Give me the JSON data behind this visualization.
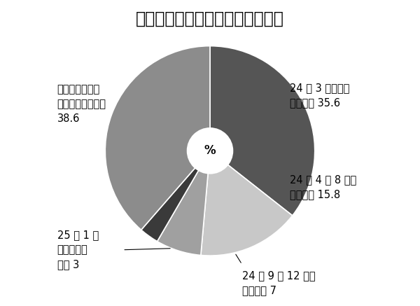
{
  "title": "４割の事業者が対応のメド立たず",
  "slices": [
    {
      "label": "24 年 3 月までに\n対応完了 35.6",
      "value": 35.6,
      "color": "#555555"
    },
    {
      "label": "24 年 4 〜 8 月に\n対応完了 15.8",
      "value": 15.8,
      "color": "#c8c8c8"
    },
    {
      "label": "24 年 9 〜 12 月に\n完了予定 7",
      "value": 7.0,
      "color": "#a0a0a0"
    },
    {
      "label": "25 年 1 月\n以降に完了\n予定 3",
      "value": 3.0,
      "color": "#3a3a3a"
    },
    {
      "label": "現在対応中だが\n完了のメド立たず\n38.6",
      "value": 38.6,
      "color": "#8c8c8c"
    }
  ],
  "center_label": "%",
  "background_color": "#ffffff",
  "title_fontsize": 17,
  "label_fontsize": 10.5
}
